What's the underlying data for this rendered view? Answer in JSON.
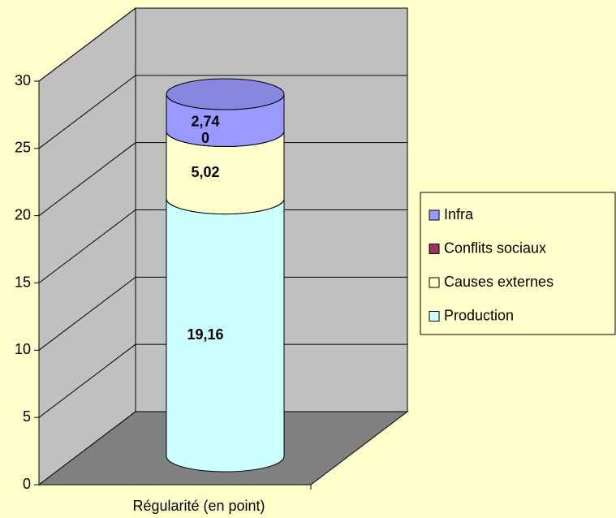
{
  "chart_data": {
    "type": "bar3d_stacked_cylinder",
    "categories": [
      "Régularité (en point)"
    ],
    "series": [
      {
        "name": "Production",
        "color": "#ccffff",
        "values": [
          19.16
        ],
        "value_labels": [
          "19,16"
        ]
      },
      {
        "name": "Causes externes",
        "color": "#ffffcc",
        "values": [
          5.02
        ],
        "value_labels": [
          "5,02"
        ]
      },
      {
        "name": "Conflits sociaux",
        "color": "#993366",
        "values": [
          0
        ],
        "value_labels": [
          "0"
        ]
      },
      {
        "name": "Infra",
        "color": "#9999ff",
        "values": [
          2.74
        ],
        "value_labels": [
          "2,74"
        ]
      }
    ],
    "ylim": [
      0,
      30
    ],
    "yticks": [
      0,
      5,
      10,
      15,
      20,
      25,
      30
    ],
    "grid": true,
    "legend": "right"
  }
}
